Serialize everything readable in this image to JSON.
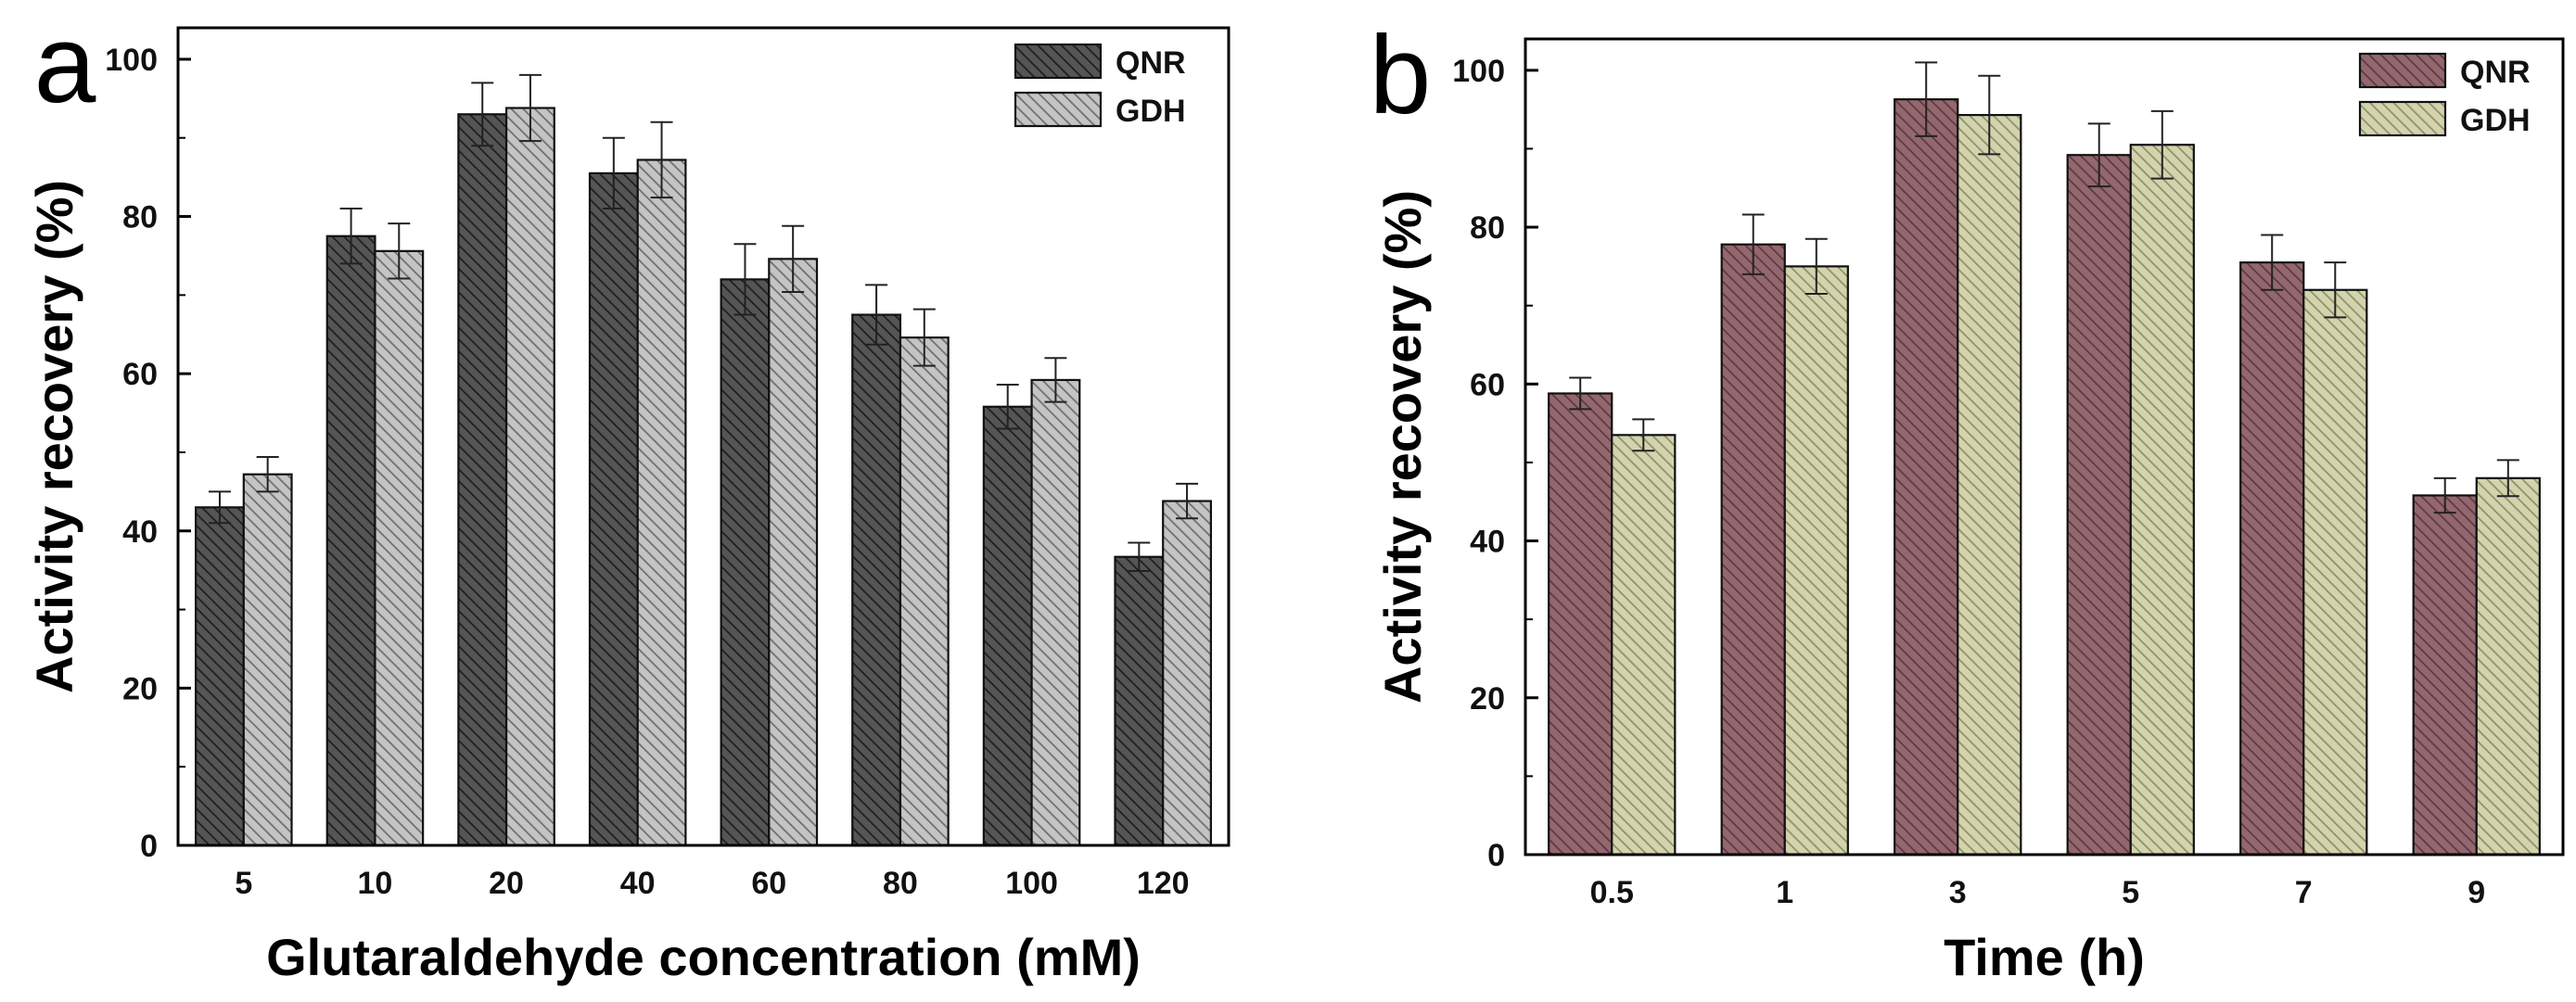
{
  "chart_data": [
    {
      "panel": "a",
      "type": "bar",
      "title": "",
      "xlabel": "Glutaraldehyde concentration (mM)",
      "ylabel": "Activity recovery (%)",
      "ylim": [
        0,
        104
      ],
      "yticks": [
        0,
        20,
        40,
        60,
        80,
        100
      ],
      "categories": [
        "5",
        "10",
        "20",
        "40",
        "60",
        "80",
        "100",
        "120"
      ],
      "legend_position": "top-right",
      "series": [
        {
          "name": "QNR",
          "color": "#555555",
          "values": [
            43,
            77.5,
            93,
            85.5,
            72,
            67.5,
            55.8,
            36.7
          ],
          "errors": [
            2,
            3.5,
            4,
            4.5,
            4.5,
            3.8,
            2.8,
            1.8
          ]
        },
        {
          "name": "GDH",
          "color": "#b4b4b4",
          "values": [
            47.2,
            75.6,
            93.8,
            87.2,
            74.6,
            64.6,
            59.2,
            43.8
          ],
          "errors": [
            2.2,
            3.5,
            4.2,
            4.8,
            4.2,
            3.6,
            2.8,
            2.2
          ]
        }
      ]
    },
    {
      "panel": "b",
      "type": "bar",
      "title": "",
      "xlabel": "Time (h)",
      "ylabel": "Activity recovery (%)",
      "ylim": [
        0,
        104
      ],
      "yticks": [
        0,
        20,
        40,
        60,
        80,
        100
      ],
      "categories": [
        "0.5",
        "1",
        "3",
        "5",
        "7",
        "9"
      ],
      "legend_position": "top-right",
      "series": [
        {
          "name": "QNR",
          "color": "#8a6068",
          "values": [
            58.8,
            77.8,
            96.3,
            89.2,
            75.5,
            45.8
          ],
          "errors": [
            2,
            3.8,
            4.7,
            4,
            3.5,
            2.2
          ]
        },
        {
          "name": "GDH",
          "color": "#c9caa2",
          "values": [
            53.5,
            75,
            94.3,
            90.5,
            72,
            48
          ],
          "errors": [
            2,
            3.5,
            5,
            4.3,
            3.5,
            2.3
          ]
        }
      ]
    }
  ]
}
